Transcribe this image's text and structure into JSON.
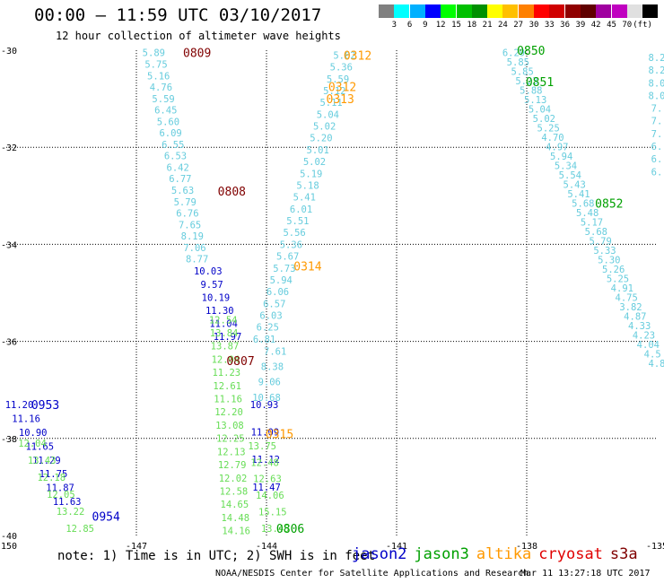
{
  "header": {
    "title": "00:00 – 11:59 UTC 03/10/2017",
    "subtitle": "12 hour collection of altimeter wave heights"
  },
  "colorbar": {
    "colors": [
      "#808080",
      "#00ffff",
      "#00b0ff",
      "#0000ff",
      "#00ff00",
      "#00c000",
      "#009000",
      "#ffff00",
      "#ffc000",
      "#ff8000",
      "#ff0000",
      "#d00000",
      "#900000",
      "#600000",
      "#a000a0",
      "#c000c0",
      "#e0e0e0",
      "#000000"
    ],
    "ticks": [
      "3",
      "6",
      "9",
      "12",
      "15",
      "18",
      "21",
      "24",
      "27",
      "30",
      "33",
      "36",
      "39",
      "42",
      "45",
      "70",
      "(ft)"
    ]
  },
  "axes": {
    "lon_ticks": [
      -150,
      -147,
      -144,
      -141,
      -138,
      -135
    ],
    "lon_labels": [
      "-150",
      "-147",
      "-144",
      "-141",
      "-138",
      "-135"
    ],
    "lat_ticks": [
      -30,
      -32,
      -34,
      -36,
      -38,
      -40
    ],
    "lat_labels": [
      "-30",
      "-32",
      "-34",
      "-36",
      "-38",
      "-40"
    ]
  },
  "footer": {
    "note": "note: 1) Time is in UTC; 2) SWH is in feet",
    "credit": "NOAA/NESDIS Center for Satellite Applications and Research",
    "timestamp": "Mar 11 13:27:18 UTC 2017"
  },
  "legend": [
    {
      "name": "jason2",
      "color": "#0000c8"
    },
    {
      "name": "jason3",
      "color": "#00a000"
    },
    {
      "name": "altika",
      "color": "#ff9900"
    },
    {
      "name": "cryosat",
      "color": "#e00000"
    },
    {
      "name": "s3a",
      "color": "#800000"
    }
  ],
  "chart_data": {
    "type": "scatter",
    "title": "00:00 – 11:59 UTC 03/10/2017",
    "xlim": [
      -150,
      -135
    ],
    "ylim": [
      -40,
      -30
    ],
    "series": [
      {
        "name": "s3a",
        "color": "#66ccdd",
        "label_color": "#800000",
        "values": [
          "5.89",
          "5.75",
          "5.16",
          "4.76",
          "5.59",
          "6.45",
          "5.60",
          "6.09",
          "6.55",
          "6.53",
          "6.42",
          "6.77",
          "5.63",
          "5.79",
          "6.76",
          "7.65",
          "8.19",
          "7.06",
          "8.77"
        ],
        "start": [
          -146.6,
          -30.05
        ],
        "end": [
          -145.6,
          -34.3
        ],
        "time_labels": [
          {
            "text": "0809",
            "lon": -145.6,
            "lat": -30.05
          },
          {
            "text": "0808",
            "lon": -144.8,
            "lat": -32.9
          }
        ]
      },
      {
        "name": "jason2",
        "color": "#0000c8",
        "label_color": "#0000c8",
        "values": [
          "10.03",
          "9.57",
          "10.19",
          "11.30",
          "11.04",
          "11.97"
        ],
        "start": [
          -145.35,
          -34.55
        ],
        "end": [
          -144.9,
          -35.9
        ]
      },
      {
        "name": "jason3",
        "color": "#66dd55",
        "label_color": "#00a000",
        "values": [
          "12.54",
          "13.84",
          "13.87",
          "12.04",
          "11.23",
          "12.61",
          "11.16",
          "12.20",
          "13.08",
          "12.25",
          "12.13",
          "12.79",
          "12.02",
          "12.58",
          "14.65",
          "14.48",
          "14.16"
        ],
        "start": [
          -145.0,
          -35.55
        ],
        "end": [
          -144.7,
          -39.9
        ]
      },
      {
        "name": "s3a",
        "color": "#66ccdd",
        "label_color": "#800000",
        "values": [
          "7.61",
          "8.38",
          "9.06",
          "10.68"
        ],
        "start": [
          -143.8,
          -36.2
        ],
        "end": [
          -144.0,
          -37.15
        ],
        "time_labels": [
          {
            "text": "0807",
            "lon": -144.6,
            "lat": -36.4
          }
        ]
      },
      {
        "name": "jason2",
        "color": "#0000c8",
        "label_color": "#0000c8",
        "values": [
          "10.93",
          "11.09",
          "11.12",
          "11.47"
        ],
        "start": [
          -144.05,
          -37.3
        ],
        "end": [
          -144.0,
          -39.0
        ]
      },
      {
        "name": "jason3",
        "color": "#66dd55",
        "label_color": "#00a000",
        "values": [
          "13.75",
          "12.48",
          "12.63",
          "14.06",
          "15.15",
          "13.45"
        ],
        "start": [
          -144.1,
          -38.15
        ],
        "end": [
          -143.8,
          -39.85
        ],
        "time_labels": [
          {
            "text": "0806",
            "lon": -143.45,
            "lat": -39.85
          }
        ]
      },
      {
        "name": "altika",
        "color": "#66ccdd",
        "label_color": "#ff9900",
        "values": [
          "5.62",
          "5.36",
          "5.59",
          "5.12",
          "5.11",
          "5.04",
          "5.02",
          "5.20",
          "5.01",
          "5.02",
          "5.19",
          "5.18",
          "5.41",
          "6.01",
          "5.51",
          "5.56",
          "5.36",
          "5.67",
          "5.73",
          "5.94",
          "6.06",
          "6.57",
          "6.03",
          "6.25",
          "6.81"
        ],
        "start": [
          -142.2,
          -30.1
        ],
        "end": [
          -144.05,
          -35.95
        ],
        "time_labels": [
          {
            "text": "0312",
            "lon": -141.9,
            "lat": -30.1
          },
          {
            "text": "0312",
            "lon": -142.25,
            "lat": -30.75
          },
          {
            "text": "0313",
            "lon": -142.3,
            "lat": -31.0
          },
          {
            "text": "0314",
            "lon": -143.05,
            "lat": -34.45
          },
          {
            "text": "0315",
            "lon": -143.7,
            "lat": -37.9
          }
        ]
      },
      {
        "name": "jason2",
        "color": "#0000c8",
        "label_color": "#0000c8",
        "values": [
          "11.20",
          "11.16",
          "10.90",
          "11.65",
          "11.29",
          "11.75",
          "11.87",
          "11.63"
        ],
        "start": [
          -149.7,
          -37.3
        ],
        "end": [
          -148.6,
          -39.3
        ],
        "time_labels": [
          {
            "text": "0953",
            "lon": -149.1,
            "lat": -37.3
          },
          {
            "text": "0954",
            "lon": -147.7,
            "lat": -39.6
          }
        ]
      },
      {
        "name": "jason3",
        "color": "#66dd55",
        "label_color": "#00a000",
        "values": [
          "12.04",
          "13.43",
          "12.18",
          "12.05",
          "13.22",
          "12.85"
        ],
        "start": [
          -149.4,
          -38.1
        ],
        "end": [
          -148.3,
          -39.85
        ]
      },
      {
        "name": "jason3",
        "color": "#66ccdd",
        "label_color": "#00a000",
        "values": [
          "6.29",
          "5.85",
          "5.85",
          "5.23",
          "5.88",
          "5.13",
          "5.04",
          "5.02",
          "5.25",
          "4.70",
          "4.97",
          "5.94",
          "5.34",
          "5.54",
          "5.43",
          "5.41",
          "5.68",
          "5.48",
          "5.17",
          "5.68",
          "5.79",
          "5.33",
          "5.30",
          "5.26",
          "5.25",
          "4.91",
          "4.75",
          "3.82",
          "4.87",
          "4.33",
          "4.23",
          "4.04",
          "4.5",
          "4.8"
        ],
        "start": [
          -138.3,
          -30.05
        ],
        "end": [
          -135.0,
          -36.45
        ],
        "time_labels": [
          {
            "text": "0850",
            "lon": -137.9,
            "lat": -30.0
          },
          {
            "text": "0851",
            "lon": -137.7,
            "lat": -30.65
          },
          {
            "text": "0852",
            "lon": -136.1,
            "lat": -33.15
          }
        ]
      },
      {
        "name": "jason2",
        "color": "#66ccdd",
        "label_color": "#0000c8",
        "values": [
          "8.2",
          "8.2",
          "8.0",
          "8.0",
          "7.",
          "7.",
          "7.",
          "6.",
          "6.",
          "6."
        ],
        "start": [
          -135.0,
          -30.15
        ],
        "end": [
          -135.0,
          -32.5
        ]
      }
    ]
  }
}
